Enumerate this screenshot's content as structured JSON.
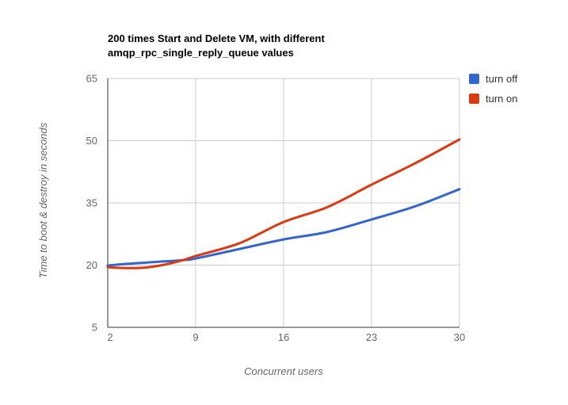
{
  "header": {
    "title_line1": "200 times Start and Delete VM, with different",
    "title_line2": "amqp_rpc_single_reply_queue values"
  },
  "chart_data": {
    "type": "line",
    "title": "200 times Start and Delete VM, with different amqp_rpc_single_reply_queue values",
    "xlabel": "Concurrent users",
    "ylabel": "Time to boot & destroy in seconds",
    "xlim": [
      2,
      30
    ],
    "ylim": [
      5,
      65
    ],
    "x_ticks": [
      2,
      9,
      16,
      23,
      30
    ],
    "y_ticks": [
      5,
      20,
      35,
      50,
      65
    ],
    "grid": true,
    "legend_position": "right",
    "curve_type": "smooth",
    "x": [
      2,
      3.5,
      5,
      6.5,
      8,
      9,
      12.5,
      16,
      19.5,
      23,
      26.5,
      30
    ],
    "series": [
      {
        "name": "turn off",
        "color": "#3366CC",
        "values": [
          19.9,
          20.3,
          20.6,
          20.9,
          21.2,
          21.6,
          23.9,
          26.2,
          28.0,
          31.0,
          34.2,
          38.3
        ]
      },
      {
        "name": "turn on",
        "color": "#DC3912",
        "values": [
          19.5,
          19.3,
          19.4,
          20.1,
          21.2,
          22.2,
          25.3,
          30.4,
          34.0,
          39.4,
          44.6,
          50.3
        ]
      }
    ]
  },
  "style_colors": {
    "background": "#ffffff",
    "grid": "#cccccc",
    "axis": "#333333",
    "tick_text": "#666666",
    "axis_title_text": "#666666",
    "legend_text": "#333333",
    "title_text": "#000000"
  }
}
